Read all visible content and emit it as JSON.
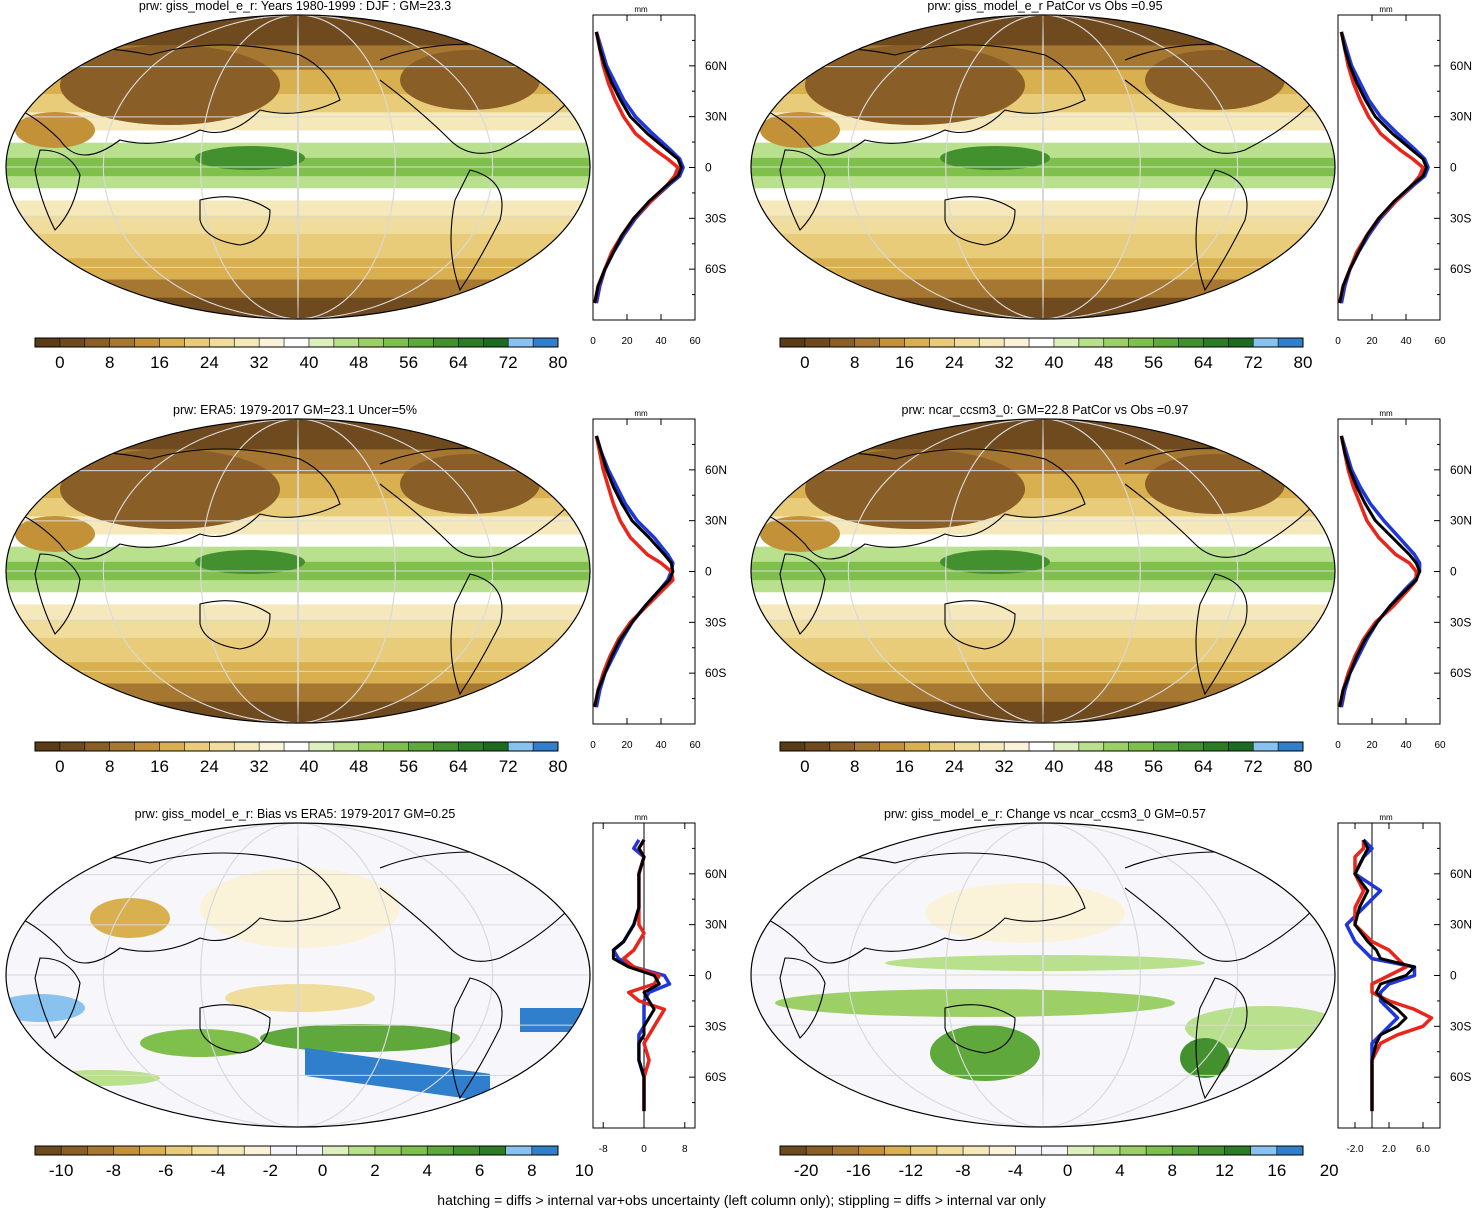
{
  "footer_note": "hatching = diffs > internal var+obs uncertainty (left column only); stippling = diffs > internal var only",
  "palettes": {
    "abs": [
      "#5a3b17",
      "#6f4a1f",
      "#8a5e27",
      "#a67730",
      "#c39238",
      "#d9b04f",
      "#e8cc7a",
      "#f0dc9b",
      "#f5e9bb",
      "#faf3da",
      "#ffffff",
      "#dff0c0",
      "#b9e08c",
      "#9cd067",
      "#7fbf4b",
      "#5fa83b",
      "#43902f",
      "#2d7a27",
      "#1e6a22",
      "#89c2ef",
      "#2f7fcc"
    ],
    "diff": [
      "#6b4a1f",
      "#8a5e27",
      "#a67730",
      "#c39238",
      "#d9b04f",
      "#e8cc7a",
      "#f0dc9b",
      "#f5e9bb",
      "#faf3da",
      "#f7f7fb",
      "#f7f7fb",
      "#dff0c0",
      "#b9e08c",
      "#9cd067",
      "#7fbf4b",
      "#5fa83b",
      "#43902f",
      "#2d7a27",
      "#89c2ef",
      "#2f7fcc"
    ]
  },
  "line_colors": {
    "model": "#e8261c",
    "obs": "#1f36d8",
    "ref": "#000000"
  },
  "panels": [
    {
      "id": "giss-djf",
      "title": "prw: giss_model_e_r: Years 1980-1999 : DJF : GM=23.3",
      "kind": "abs",
      "colorbar_labels": [
        "0",
        "8",
        "16",
        "24",
        "32",
        "40",
        "48",
        "56",
        "64",
        "72",
        "80"
      ],
      "profile": {
        "unit": "mm",
        "xticks": [
          "0",
          "20",
          "40",
          "60"
        ],
        "xrange": [
          0,
          60
        ],
        "yticks": [
          "60N",
          "30N",
          "0",
          "30S",
          "60S"
        ],
        "lat": [
          80,
          70,
          60,
          50,
          40,
          30,
          20,
          10,
          5,
          0,
          -5,
          -10,
          -20,
          -30,
          -40,
          -50,
          -60,
          -70,
          -80
        ],
        "ref": [
          2,
          4,
          7,
          11,
          16,
          22,
          32,
          44,
          50,
          52,
          50,
          44,
          33,
          24,
          17,
          12,
          7,
          3,
          1
        ],
        "model": [
          2,
          4,
          6,
          9,
          13,
          18,
          25,
          37,
          44,
          50,
          48,
          44,
          34,
          24,
          17,
          11,
          7,
          3,
          1
        ],
        "obs": [
          2,
          5,
          8,
          13,
          18,
          25,
          35,
          46,
          51,
          53,
          51,
          45,
          34,
          25,
          18,
          12,
          7,
          4,
          2
        ]
      }
    },
    {
      "id": "giss-patcor",
      "title": "prw: giss_model_e_r PatCor vs Obs =0.95",
      "kind": "abs",
      "colorbar_labels": [
        "0",
        "8",
        "16",
        "24",
        "32",
        "40",
        "48",
        "56",
        "64",
        "72",
        "80"
      ],
      "profile": {
        "unit": "mm",
        "xticks": [
          "0",
          "20",
          "40",
          "60"
        ],
        "xrange": [
          0,
          60
        ],
        "yticks": [
          "60N",
          "30N",
          "0",
          "30S",
          "60S"
        ],
        "lat": [
          80,
          70,
          60,
          50,
          40,
          30,
          20,
          10,
          5,
          0,
          -5,
          -10,
          -20,
          -30,
          -40,
          -50,
          -60,
          -70,
          -80
        ],
        "ref": [
          2,
          4,
          7,
          11,
          16,
          22,
          32,
          44,
          50,
          52,
          50,
          44,
          33,
          24,
          17,
          12,
          7,
          3,
          1
        ],
        "model": [
          2,
          4,
          6,
          9,
          13,
          18,
          25,
          37,
          44,
          50,
          48,
          44,
          34,
          24,
          17,
          11,
          7,
          3,
          1
        ],
        "obs": [
          2,
          5,
          8,
          13,
          18,
          25,
          35,
          46,
          51,
          53,
          51,
          45,
          34,
          25,
          18,
          12,
          7,
          4,
          2
        ]
      }
    },
    {
      "id": "era5",
      "title": "prw: ERA5: 1979-2017 GM=23.1 Uncer=5%",
      "kind": "abs",
      "colorbar_labels": [
        "0",
        "8",
        "16",
        "24",
        "32",
        "40",
        "48",
        "56",
        "64",
        "72",
        "80"
      ],
      "profile": {
        "unit": "mm",
        "xticks": [
          "0",
          "20",
          "40",
          "60"
        ],
        "xrange": [
          0,
          60
        ],
        "yticks": [
          "60N",
          "30N",
          "0",
          "30S",
          "60S"
        ],
        "lat": [
          80,
          70,
          60,
          50,
          40,
          30,
          20,
          10,
          5,
          0,
          -5,
          -10,
          -20,
          -30,
          -40,
          -50,
          -60,
          -70,
          -80
        ],
        "ref": [
          2,
          5,
          8,
          12,
          17,
          23,
          33,
          42,
          46,
          47,
          45,
          40,
          31,
          23,
          16,
          11,
          7,
          3,
          1
        ],
        "model": [
          2,
          4,
          6,
          9,
          12,
          16,
          22,
          32,
          40,
          46,
          47,
          42,
          32,
          22,
          15,
          10,
          6,
          3,
          1
        ],
        "obs": [
          2,
          5,
          9,
          14,
          19,
          26,
          36,
          44,
          47,
          46,
          44,
          40,
          31,
          23,
          17,
          12,
          7,
          4,
          2
        ]
      }
    },
    {
      "id": "ncar",
      "title": "prw: ncar_ccsm3_0: GM=22.8 PatCor vs Obs =0.97",
      "kind": "abs",
      "colorbar_labels": [
        "0",
        "8",
        "16",
        "24",
        "32",
        "40",
        "48",
        "56",
        "64",
        "72",
        "80"
      ],
      "profile": {
        "unit": "mm",
        "xticks": [
          "0",
          "20",
          "40",
          "60"
        ],
        "xrange": [
          0,
          60
        ],
        "yticks": [
          "60N",
          "30N",
          "0",
          "30S",
          "60S"
        ],
        "lat": [
          80,
          70,
          60,
          50,
          40,
          30,
          20,
          10,
          5,
          0,
          -5,
          -10,
          -20,
          -30,
          -40,
          -50,
          -60,
          -70,
          -80
        ],
        "ref": [
          2,
          4,
          7,
          11,
          16,
          22,
          32,
          42,
          46,
          48,
          46,
          41,
          31,
          23,
          16,
          11,
          7,
          3,
          1
        ],
        "model": [
          2,
          4,
          6,
          9,
          13,
          17,
          24,
          34,
          42,
          46,
          46,
          42,
          33,
          22,
          15,
          10,
          6,
          3,
          1
        ],
        "obs": [
          2,
          5,
          8,
          13,
          19,
          27,
          36,
          45,
          48,
          48,
          45,
          40,
          31,
          23,
          17,
          12,
          7,
          4,
          2
        ]
      }
    },
    {
      "id": "bias",
      "title": "prw: giss_model_e_r: Bias vs ERA5: 1979-2017 GM=0.25",
      "kind": "diff",
      "colorbar_labels": [
        "-10",
        "-8",
        "-6",
        "-4",
        "-2",
        "0",
        "2",
        "4",
        "6",
        "8",
        "10"
      ],
      "profile": {
        "unit": "mm",
        "xticks": [
          "-8",
          "0",
          "8"
        ],
        "xrange": [
          -10,
          10
        ],
        "yticks": [
          "60N",
          "30N",
          "0",
          "30S",
          "60S"
        ],
        "lat": [
          80,
          75,
          70,
          60,
          50,
          40,
          30,
          25,
          20,
          15,
          10,
          5,
          0,
          -5,
          -10,
          -15,
          -20,
          -25,
          -30,
          -35,
          -40,
          -50,
          -60,
          -70,
          -80
        ],
        "ref": [
          0,
          -1,
          0,
          -1,
          -1,
          -1,
          -2,
          -3,
          -4,
          -6,
          -6,
          -3,
          2,
          3,
          0,
          1,
          2,
          1,
          0,
          0,
          -1,
          -1,
          0,
          0,
          0
        ],
        "model": [
          0,
          -1,
          0,
          -1,
          -1,
          -1,
          -1,
          0,
          -1,
          -2,
          -4,
          -2,
          3,
          2,
          -3,
          -1,
          4,
          3,
          2,
          1,
          0,
          1,
          0,
          0,
          0
        ],
        "obs": [
          -1,
          -2,
          0,
          -1,
          -1,
          -1,
          -2,
          -3,
          -4,
          -6,
          -5,
          -2,
          4,
          5,
          1,
          0,
          0,
          0,
          0,
          -1,
          -1,
          -1,
          0,
          0,
          0
        ]
      }
    },
    {
      "id": "change",
      "title": "prw: giss_model_e_r: Change vs ncar_ccsm3_0 GM=0.57",
      "kind": "diff",
      "colorbar_labels": [
        "-20",
        "-16",
        "-12",
        "-8",
        "-4",
        "0",
        "4",
        "8",
        "12",
        "16",
        "20"
      ],
      "profile": {
        "unit": "mm",
        "xticks": [
          "-2.0",
          "2.0",
          "6.0"
        ],
        "xrange": [
          -4,
          8
        ],
        "yticks": [
          "60N",
          "30N",
          "0",
          "30S",
          "60S"
        ],
        "lat": [
          80,
          75,
          70,
          60,
          50,
          40,
          30,
          20,
          15,
          10,
          5,
          0,
          -5,
          -10,
          -15,
          -20,
          -25,
          -30,
          -35,
          -40,
          -50,
          -60,
          -70,
          -80
        ],
        "ref": [
          -1,
          -0.5,
          -1,
          -2,
          -0.5,
          -1.5,
          -2,
          -0.5,
          0.5,
          1,
          5,
          4,
          1,
          0.5,
          1.5,
          3,
          4,
          3,
          1,
          0.5,
          0,
          0,
          0,
          0
        ],
        "model": [
          -1,
          -1,
          -2,
          -2,
          -1,
          -2,
          -2,
          0,
          2,
          3,
          4,
          2,
          0,
          0,
          2,
          5,
          7,
          6,
          3,
          1,
          0,
          0,
          0,
          0
        ],
        "obs": [
          -1,
          0,
          -1,
          -2,
          1,
          -1,
          -3,
          -2,
          -1,
          0,
          5,
          5,
          2,
          1,
          1,
          2,
          3,
          2,
          1,
          0,
          0,
          0,
          0,
          0
        ]
      }
    }
  ]
}
